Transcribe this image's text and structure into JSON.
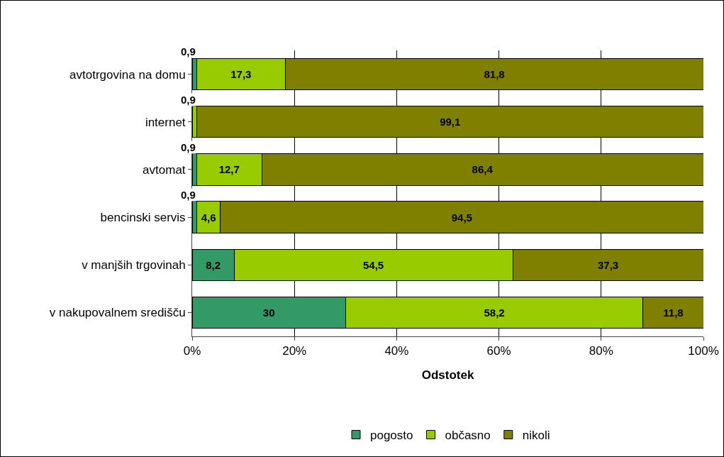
{
  "chart_data": {
    "type": "bar",
    "orientation": "horizontal",
    "stacked": true,
    "xlabel": "Odstotek",
    "categories": [
      "avtotrgovina na domu",
      "internet",
      "avtomat",
      "bencinski servis",
      "v manjših trgovinah",
      "v nakupovalnem središču"
    ],
    "series": [
      {
        "name": "pogosto",
        "color": "#339966",
        "values": [
          0.9,
          0,
          0.9,
          0.9,
          8.2,
          30
        ],
        "value_labels": [
          "0,9",
          null,
          "0,9",
          "0,9",
          "8,2",
          "30"
        ]
      },
      {
        "name": "občasno",
        "color": "#99cc00",
        "values": [
          17.3,
          0.9,
          12.7,
          4.6,
          54.5,
          58.2
        ],
        "value_labels": [
          "17,3",
          "0,9",
          "12,7",
          "4,6",
          "54,5",
          "58,2"
        ]
      },
      {
        "name": "nikoli",
        "color": "#808000",
        "values": [
          81.8,
          99.1,
          86.4,
          94.5,
          37.3,
          11.8
        ],
        "value_labels": [
          "81,8",
          "99,1",
          "86,4",
          "94,5",
          "37,3",
          "11,8"
        ]
      }
    ],
    "xlim": [
      0,
      100
    ],
    "xticks": [
      {
        "value": 0,
        "label": "0%"
      },
      {
        "value": 20,
        "label": "20%"
      },
      {
        "value": 40,
        "label": "40%"
      },
      {
        "value": 60,
        "label": "60%"
      },
      {
        "value": 80,
        "label": "80%"
      },
      {
        "value": 100,
        "label": "100%"
      }
    ],
    "grid": "x",
    "legend": "bottom"
  }
}
